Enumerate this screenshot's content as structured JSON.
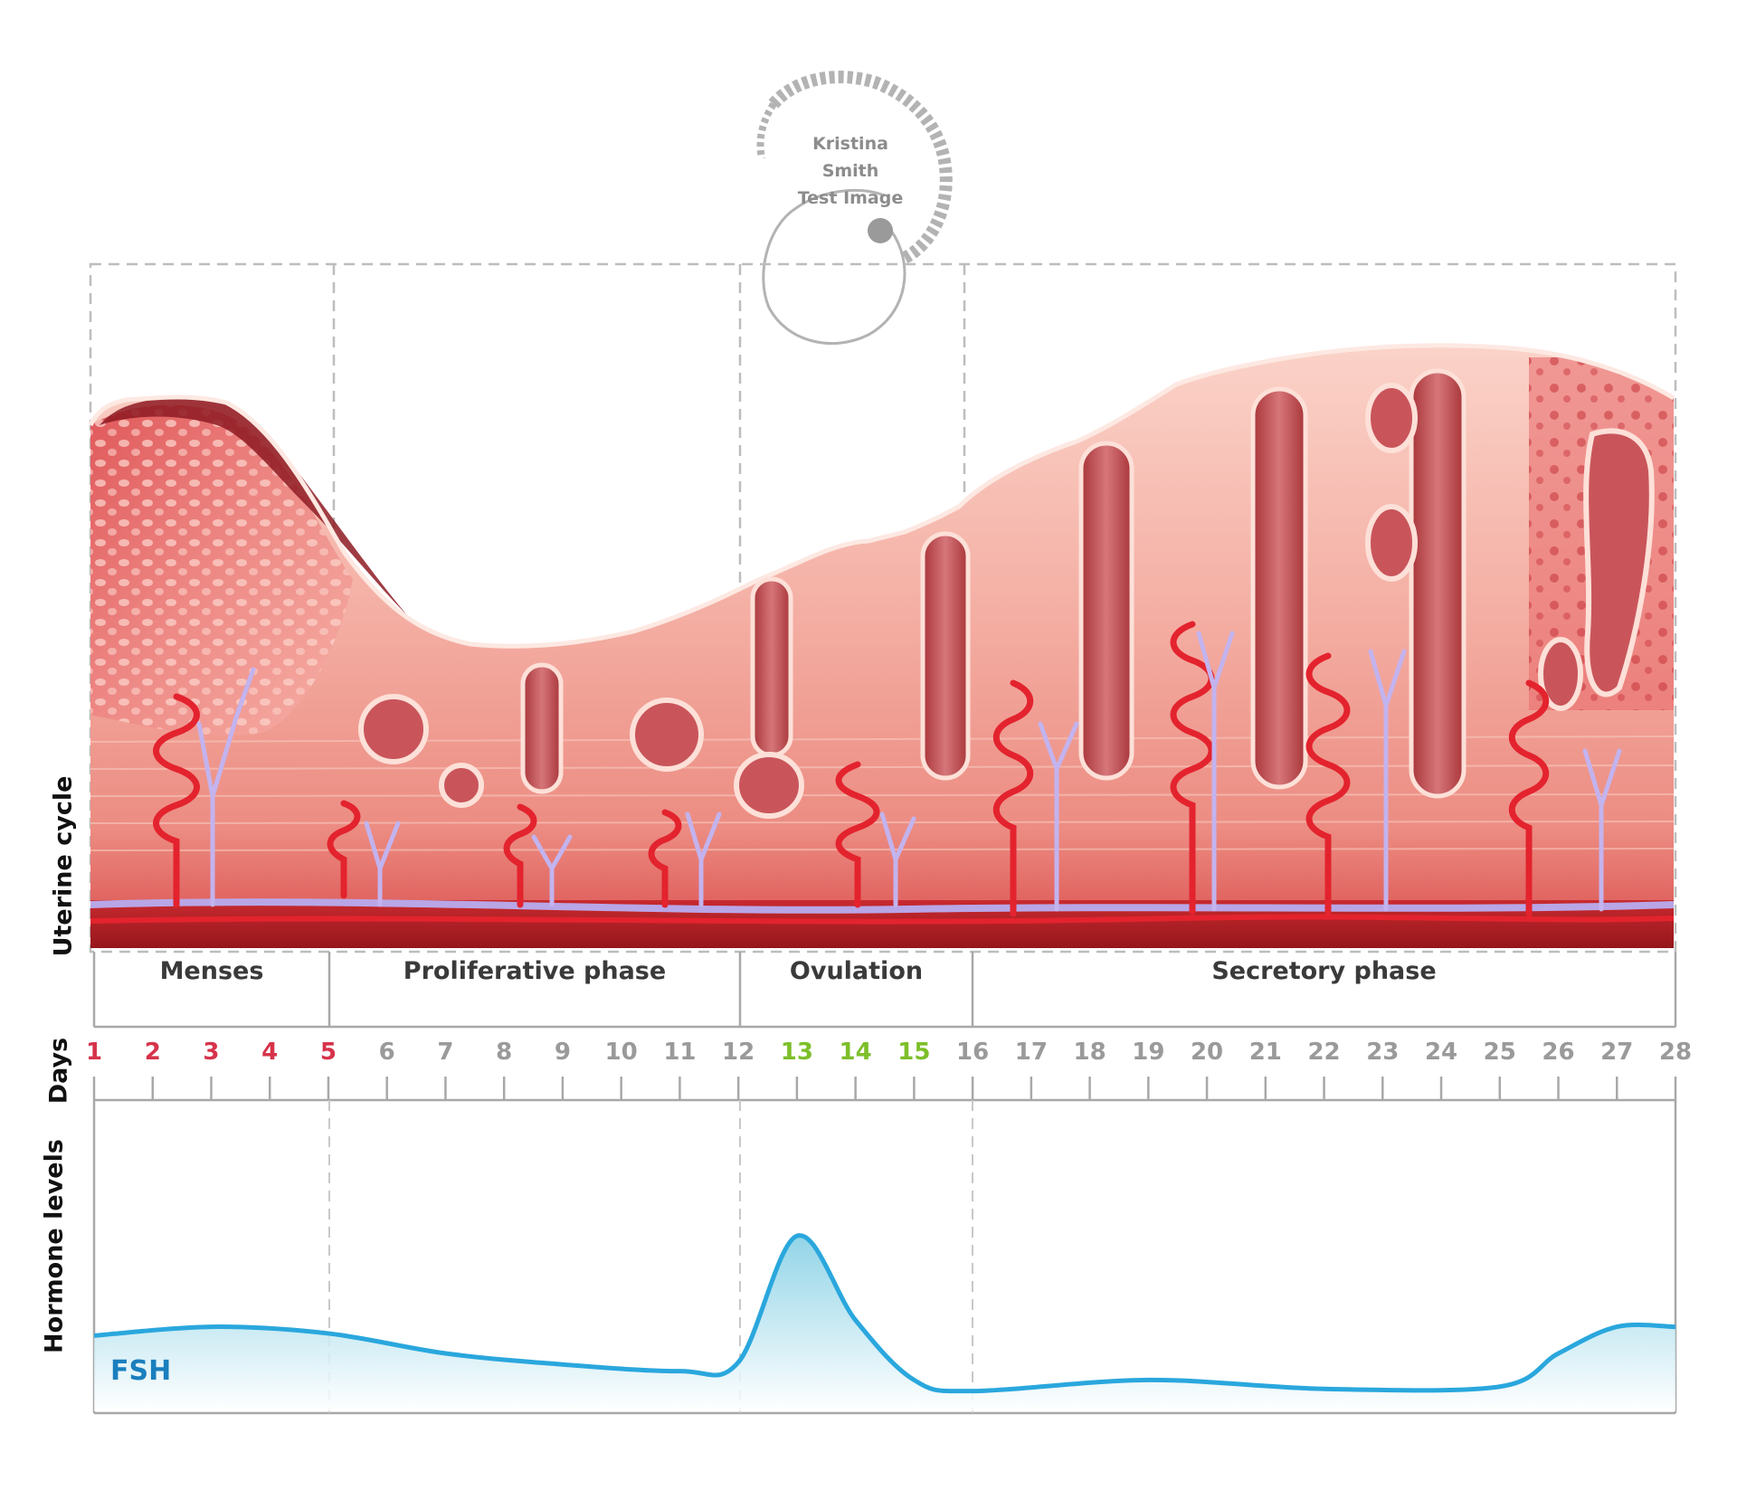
{
  "watermark": {
    "line1": "Kristina",
    "line2": "Smith",
    "line3": "Test Image"
  },
  "axes": {
    "uterine_cycle_label": "Uterine cycle",
    "days_label": "Days",
    "hormone_label": "Hormone levels"
  },
  "phases": [
    {
      "label": "Menses",
      "start_day": 1,
      "end_day": 5
    },
    {
      "label": "Proliferative phase",
      "start_day": 5,
      "end_day": 12
    },
    {
      "label": "Ovulation",
      "start_day": 12,
      "end_day": 16
    },
    {
      "label": "Secretory phase",
      "start_day": 16,
      "end_day": 28
    }
  ],
  "days": [
    {
      "n": "1",
      "color": "#d6334a"
    },
    {
      "n": "2",
      "color": "#d6334a"
    },
    {
      "n": "3",
      "color": "#d6334a"
    },
    {
      "n": "4",
      "color": "#d6334a"
    },
    {
      "n": "5",
      "color": "#d6334a"
    },
    {
      "n": "6",
      "color": "#9a9a9a"
    },
    {
      "n": "7",
      "color": "#9a9a9a"
    },
    {
      "n": "8",
      "color": "#9a9a9a"
    },
    {
      "n": "9",
      "color": "#9a9a9a"
    },
    {
      "n": "10",
      "color": "#9a9a9a"
    },
    {
      "n": "11",
      "color": "#9a9a9a"
    },
    {
      "n": "12",
      "color": "#9a9a9a"
    },
    {
      "n": "13",
      "color": "#7dbf2a"
    },
    {
      "n": "14",
      "color": "#7dbf2a"
    },
    {
      "n": "15",
      "color": "#7dbf2a"
    },
    {
      "n": "16",
      "color": "#9a9a9a"
    },
    {
      "n": "17",
      "color": "#9a9a9a"
    },
    {
      "n": "18",
      "color": "#9a9a9a"
    },
    {
      "n": "19",
      "color": "#9a9a9a"
    },
    {
      "n": "20",
      "color": "#9a9a9a"
    },
    {
      "n": "21",
      "color": "#9a9a9a"
    },
    {
      "n": "22",
      "color": "#9a9a9a"
    },
    {
      "n": "23",
      "color": "#9a9a9a"
    },
    {
      "n": "24",
      "color": "#9a9a9a"
    },
    {
      "n": "25",
      "color": "#9a9a9a"
    },
    {
      "n": "26",
      "color": "#9a9a9a"
    },
    {
      "n": "27",
      "color": "#9a9a9a"
    },
    {
      "n": "28",
      "color": "#9a9a9a"
    }
  ],
  "hormone": {
    "name": "FSH",
    "color": "#2aa7dd",
    "fill": "#a8dcec",
    "relative_level_by_day": [
      {
        "day": 1,
        "level": 0.28
      },
      {
        "day": 3,
        "level": 0.32
      },
      {
        "day": 5,
        "level": 0.29
      },
      {
        "day": 7,
        "level": 0.2
      },
      {
        "day": 9,
        "level": 0.15
      },
      {
        "day": 11,
        "level": 0.12
      },
      {
        "day": 12,
        "level": 0.16
      },
      {
        "day": 13,
        "level": 0.73
      },
      {
        "day": 14,
        "level": 0.35
      },
      {
        "day": 15,
        "level": 0.08
      },
      {
        "day": 16,
        "level": 0.03
      },
      {
        "day": 19,
        "level": 0.08
      },
      {
        "day": 22,
        "level": 0.04
      },
      {
        "day": 25,
        "level": 0.05
      },
      {
        "day": 26,
        "level": 0.2
      },
      {
        "day": 27,
        "level": 0.32
      },
      {
        "day": 28,
        "level": 0.32
      }
    ]
  },
  "colors": {
    "tissue_light": "#f6b4aa",
    "tissue_mid": "#ea7d72",
    "tissue_dark": "#b5212a",
    "vessel_red": "#e3232e",
    "vessel_lilac": "#b8a6e8",
    "frame_gray": "#a8a8a8"
  }
}
